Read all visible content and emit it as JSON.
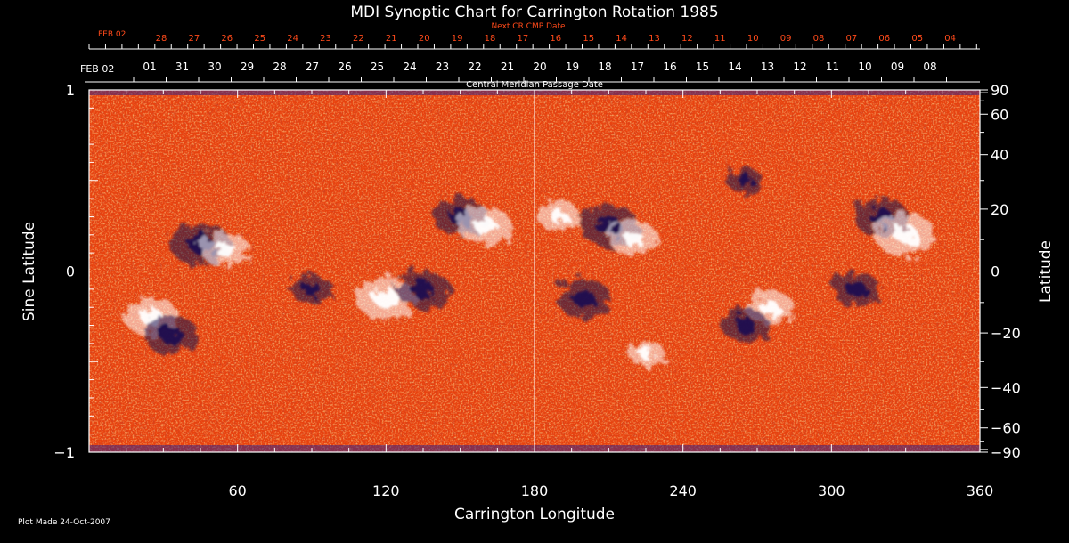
{
  "chart_data": {
    "type": "heatmap",
    "title": "MDI Synoptic Chart for Carrington Rotation 1985",
    "xlabel": "Carrington Longitude",
    "ylabel_left": "Sine Latitude",
    "ylabel_right": "Latitude",
    "xlim": [
      0,
      360
    ],
    "ylim": [
      -1,
      1
    ],
    "x_ticks": [
      60,
      120,
      180,
      240,
      300,
      360
    ],
    "y_ticks_left": [
      {
        "value": 1,
        "label": "1"
      },
      {
        "value": 0,
        "label": "0"
      },
      {
        "value": -1,
        "label": "−1"
      }
    ],
    "y_ticks_right": [
      {
        "deg": 90,
        "label": "90"
      },
      {
        "deg": 60,
        "label": "60"
      },
      {
        "deg": 40,
        "label": "40"
      },
      {
        "deg": 20,
        "label": "20"
      },
      {
        "deg": 0,
        "label": "0"
      },
      {
        "deg": -20,
        "label": "−20"
      },
      {
        "deg": -40,
        "label": "−40"
      },
      {
        "deg": -60,
        "label": "−60"
      },
      {
        "deg": -90,
        "label": "−90"
      }
    ],
    "cmp_axis_label": "Central Meridian Passage Date",
    "cmp_start_label": "FEB 02",
    "cmp_dates": [
      "01",
      "31",
      "30",
      "29",
      "28",
      "27",
      "26",
      "25",
      "24",
      "23",
      "22",
      "21",
      "20",
      "19",
      "18",
      "17",
      "16",
      "15",
      "14",
      "13",
      "12",
      "11",
      "10",
      "09",
      "08"
    ],
    "next_cr_axis_label": "Next CR CMP Date",
    "next_cr_start_label": "FEB 02",
    "next_cr_dates": [
      "28",
      "27",
      "26",
      "25",
      "24",
      "23",
      "22",
      "21",
      "20",
      "19",
      "18",
      "17",
      "16",
      "15",
      "14",
      "13",
      "12",
      "11",
      "10",
      "09",
      "08",
      "07",
      "06",
      "05",
      "04"
    ],
    "grid_lines": {
      "longitude": [
        180
      ],
      "sine_latitude": [
        0
      ]
    },
    "colors": {
      "background": "#000000",
      "field_base": "#e8420f",
      "positive": "#ffffff",
      "negative": "#1a0f50",
      "next_cr_text": "#ff4a1a"
    },
    "active_regions": [
      {
        "lon": 45,
        "sinlat": 0.15,
        "polarity": "negative",
        "strength": 1.0
      },
      {
        "lon": 55,
        "sinlat": 0.12,
        "polarity": "positive",
        "strength": 0.8
      },
      {
        "lon": 25,
        "sinlat": -0.25,
        "polarity": "positive",
        "strength": 0.9
      },
      {
        "lon": 33,
        "sinlat": -0.35,
        "polarity": "negative",
        "strength": 0.9
      },
      {
        "lon": 90,
        "sinlat": -0.1,
        "polarity": "negative",
        "strength": 0.7
      },
      {
        "lon": 120,
        "sinlat": -0.15,
        "polarity": "positive",
        "strength": 1.0
      },
      {
        "lon": 135,
        "sinlat": -0.1,
        "polarity": "negative",
        "strength": 0.9
      },
      {
        "lon": 150,
        "sinlat": 0.3,
        "polarity": "negative",
        "strength": 0.9
      },
      {
        "lon": 160,
        "sinlat": 0.25,
        "polarity": "positive",
        "strength": 0.9
      },
      {
        "lon": 190,
        "sinlat": 0.3,
        "polarity": "positive",
        "strength": 0.7
      },
      {
        "lon": 210,
        "sinlat": 0.25,
        "polarity": "negative",
        "strength": 1.0
      },
      {
        "lon": 220,
        "sinlat": 0.18,
        "polarity": "positive",
        "strength": 0.8
      },
      {
        "lon": 200,
        "sinlat": -0.15,
        "polarity": "negative",
        "strength": 0.9
      },
      {
        "lon": 265,
        "sinlat": 0.5,
        "polarity": "negative",
        "strength": 0.6
      },
      {
        "lon": 275,
        "sinlat": -0.2,
        "polarity": "positive",
        "strength": 0.8
      },
      {
        "lon": 265,
        "sinlat": -0.3,
        "polarity": "negative",
        "strength": 0.8
      },
      {
        "lon": 310,
        "sinlat": -0.1,
        "polarity": "negative",
        "strength": 0.8
      },
      {
        "lon": 320,
        "sinlat": 0.3,
        "polarity": "negative",
        "strength": 0.9
      },
      {
        "lon": 330,
        "sinlat": 0.2,
        "polarity": "positive",
        "strength": 1.0
      },
      {
        "lon": 225,
        "sinlat": -0.45,
        "polarity": "positive",
        "strength": 0.6
      }
    ]
  },
  "footer": {
    "plot_made": "Plot Made 24-Oct-2007"
  }
}
